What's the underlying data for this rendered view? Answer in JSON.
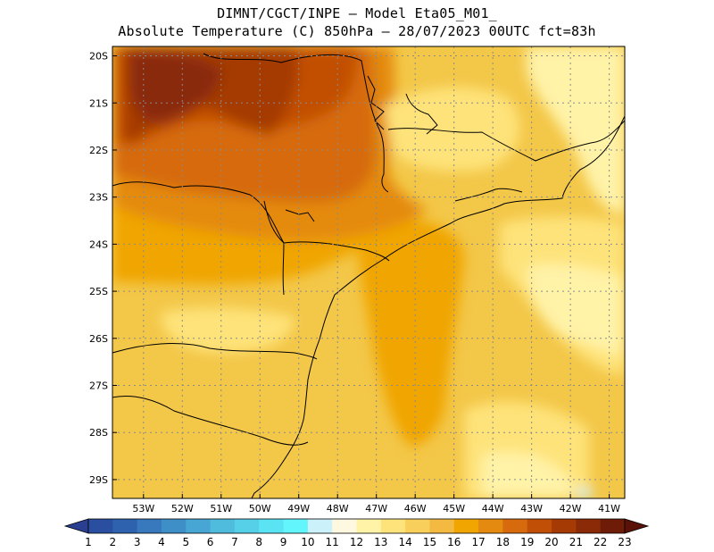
{
  "header": {
    "line1": "DIMNT/CGCT/INPE –   Model Eta05_M01_",
    "line2": "Absolute Temperature (C) 850hPa –   28/07/2023 00UTC fct=83h"
  },
  "map": {
    "lon_range": [
      -53.8,
      -40.6
    ],
    "lat_range": [
      -29.4,
      -19.8
    ],
    "lon_ticks": [
      {
        "value": -53,
        "label": "53W"
      },
      {
        "value": -52,
        "label": "52W"
      },
      {
        "value": -51,
        "label": "51W"
      },
      {
        "value": -50,
        "label": "50W"
      },
      {
        "value": -49,
        "label": "49W"
      },
      {
        "value": -48,
        "label": "48W"
      },
      {
        "value": -47,
        "label": "47W"
      },
      {
        "value": -46,
        "label": "46W"
      },
      {
        "value": -45,
        "label": "45W"
      },
      {
        "value": -44,
        "label": "44W"
      },
      {
        "value": -43,
        "label": "43W"
      },
      {
        "value": -42,
        "label": "42W"
      },
      {
        "value": -41,
        "label": "41W"
      }
    ],
    "lat_ticks": [
      {
        "value": -20,
        "label": "20S"
      },
      {
        "value": -21,
        "label": "21S"
      },
      {
        "value": -22,
        "label": "22S"
      },
      {
        "value": -23,
        "label": "23S"
      },
      {
        "value": -24,
        "label": "24S"
      },
      {
        "value": -25,
        "label": "25S"
      },
      {
        "value": -26,
        "label": "26S"
      },
      {
        "value": -27,
        "label": "27S"
      },
      {
        "value": -28,
        "label": "28S"
      },
      {
        "value": -29,
        "label": "29S"
      }
    ]
  },
  "colorbar": {
    "labels": [
      "1",
      "2",
      "3",
      "4",
      "5",
      "6",
      "7",
      "8",
      "9",
      "10",
      "11",
      "12",
      "13",
      "14",
      "15",
      "16",
      "17",
      "18",
      "19",
      "20",
      "21",
      "22",
      "23"
    ],
    "colors": [
      "#2a4fa0",
      "#2f62ae",
      "#3878bc",
      "#3e8fc8",
      "#47a6d4",
      "#4fbcde",
      "#55d0e8",
      "#5ae3f2",
      "#62f5fb",
      "#cbf2fb",
      "#fff8e0",
      "#fff3a8",
      "#fee37a",
      "#f8cf5a",
      "#f3b940",
      "#f0a500",
      "#e48a10",
      "#d66a0c",
      "#c24f06",
      "#a53a05",
      "#8a2a07",
      "#6e1c08"
    ],
    "under_color": "#2a3f90",
    "over_color": "#5a1208"
  }
}
